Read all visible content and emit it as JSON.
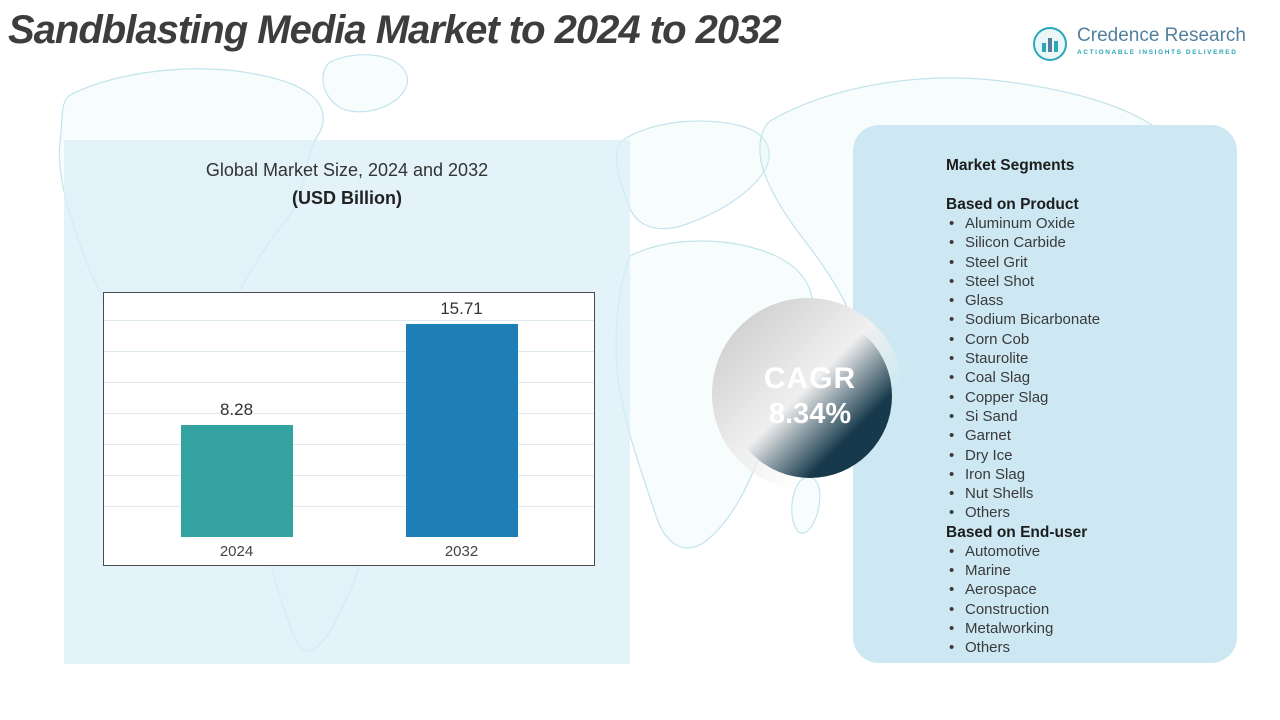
{
  "title": "Sandblasting Media Market to 2024 to 2032",
  "logo": {
    "name": "Credence Research",
    "tagline": "Actionable Insights Delivered"
  },
  "market_size_panel": {
    "title": "Global Market Size, 2024 and 2032",
    "subtitle": "(USD Billion)"
  },
  "chart_data": {
    "type": "bar",
    "title": "Global Market Size, 2024 and 2032",
    "ylabel": "USD Billion",
    "categories": [
      "2024",
      "2032"
    ],
    "values": [
      8.28,
      15.71
    ],
    "ylim": [
      0,
      18
    ],
    "grid": true,
    "legend": "none",
    "colors": [
      "#35a2a2",
      "#1d7fb5"
    ]
  },
  "cagr": {
    "label": "CAGR",
    "value": "8.34%",
    "bg": "#16394b"
  },
  "segments": {
    "heading": "Market Segments",
    "groups": [
      {
        "heading": "Based on Product",
        "items": [
          "Aluminum Oxide",
          "Silicon Carbide",
          "Steel Grit",
          "Steel Shot",
          "Glass",
          "Sodium Bicarbonate",
          "Corn Cob",
          "Staurolite",
          "Coal Slag",
          "Copper Slag",
          "Si Sand",
          "Garnet",
          "Dry Ice",
          "Iron Slag",
          "Nut Shells",
          "Others"
        ]
      },
      {
        "heading": "Based on End-user",
        "items": [
          "Automotive",
          "Marine",
          "Aerospace",
          "Construction",
          "Metalworking",
          "Others"
        ]
      }
    ]
  }
}
